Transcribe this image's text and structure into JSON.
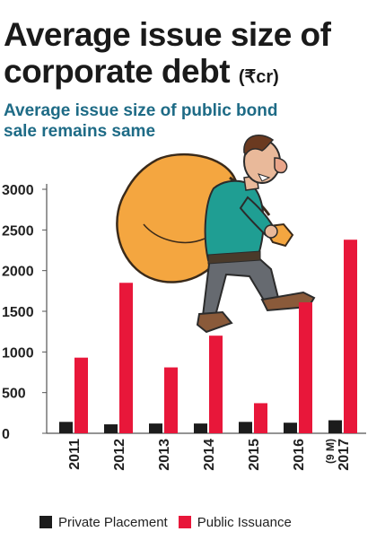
{
  "header": {
    "title": "Average issue size of corporate debt",
    "unit": "(₹cr)",
    "subtitle": "Average issue size of public bond sale remains same"
  },
  "legend": {
    "private_label": "Private Placement",
    "public_label": "Public Issuance"
  },
  "colors": {
    "private": "#1c1c1c",
    "public": "#e8173a",
    "subtitle": "#1e6b86",
    "bag": "#f4a640",
    "shirt": "#1f9e93"
  },
  "illustration": {
    "icon": "man-carrying-money-bag-icon"
  },
  "chart_data": {
    "type": "bar",
    "categories": [
      "2011",
      "2012",
      "2013",
      "2014",
      "2015",
      "2016",
      "2017"
    ],
    "category_notes": [
      "",
      "",
      "",
      "",
      "",
      "",
      "(9 M)"
    ],
    "series": [
      {
        "name": "Private Placement",
        "values": [
          140,
          110,
          120,
          120,
          140,
          130,
          160
        ]
      },
      {
        "name": "Public Issuance",
        "values": [
          930,
          1850,
          810,
          1200,
          370,
          1610,
          2380
        ]
      }
    ],
    "yticks": [
      0,
      500,
      1000,
      1500,
      2000,
      2500,
      3000
    ],
    "ylim": [
      0,
      3000
    ],
    "title": "Average issue size of corporate debt",
    "xlabel": "",
    "ylabel": "",
    "legend_position": "bottom",
    "grid": false
  }
}
